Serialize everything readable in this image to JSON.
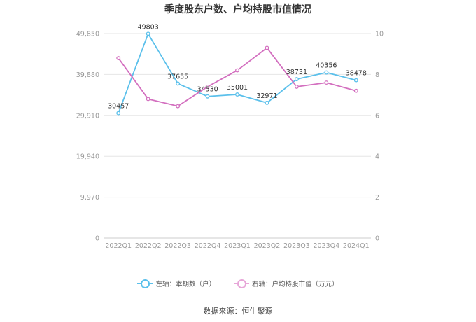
{
  "chart_data": {
    "type": "line",
    "title": "季度股东户数、户均持股市值情况",
    "categories": [
      "2022Q1",
      "2022Q2",
      "2022Q3",
      "2022Q4",
      "2023Q1",
      "2023Q2",
      "2023Q3",
      "2023Q4",
      "2024Q1"
    ],
    "left_axis": {
      "ticks": [
        "0",
        "9,970",
        "19,940",
        "29,910",
        "39,880",
        "49,850"
      ],
      "ylim": [
        0,
        49850
      ]
    },
    "right_axis": {
      "ticks": [
        "0",
        "2",
        "4",
        "6",
        "8",
        "10"
      ],
      "ylim": [
        0,
        10
      ]
    },
    "series": [
      {
        "name": "左轴：本期数（户）",
        "axis": "left",
        "color": "#5bc0eb",
        "values": [
          30457,
          49803,
          37655,
          34530,
          35001,
          32971,
          38731,
          40356,
          38478
        ],
        "labels": [
          "30457",
          "49803",
          "37655",
          "34530",
          "35001",
          "32971",
          "38731",
          "40356",
          "38478"
        ]
      },
      {
        "name": "右轴：户均持股市值（万元）",
        "axis": "right",
        "color": "#d36fbf",
        "values": [
          8.8,
          6.8,
          6.45,
          7.4,
          8.2,
          9.3,
          7.4,
          7.6,
          7.2
        ]
      }
    ],
    "grid": true,
    "legend_position": "bottom"
  },
  "source": "数据来源：恒生聚源"
}
